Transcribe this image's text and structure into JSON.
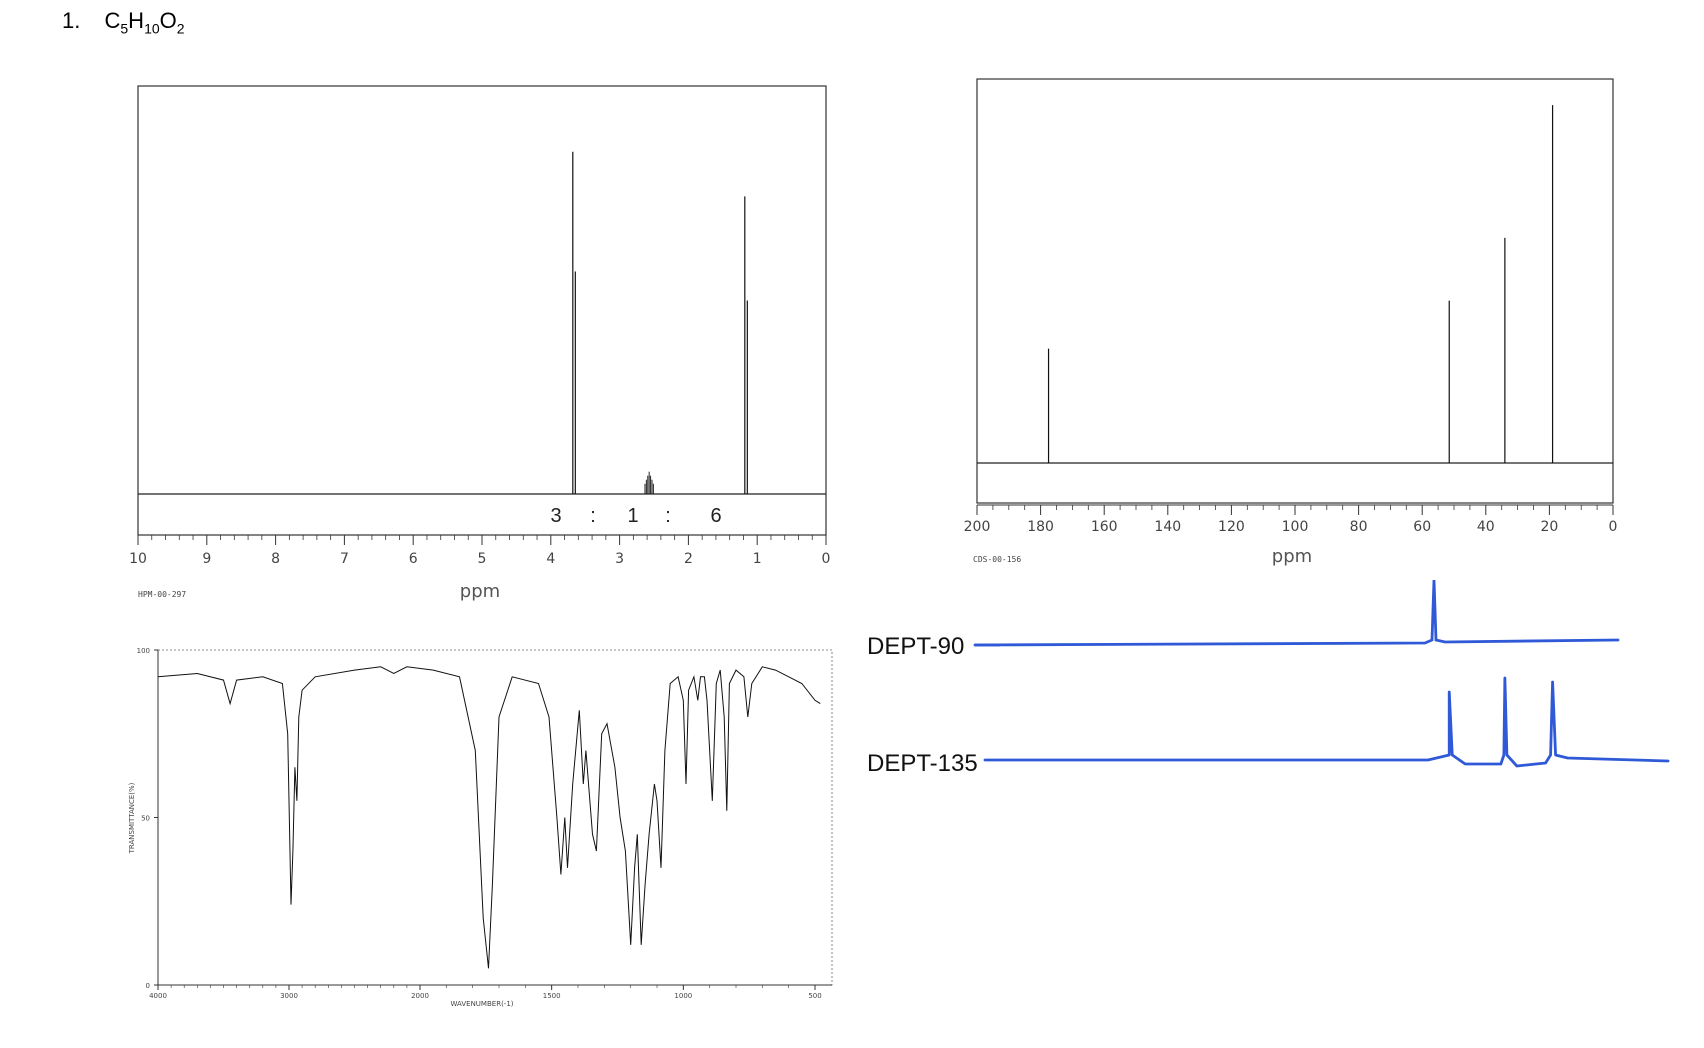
{
  "problem": {
    "number": "1.",
    "formula_C": "C",
    "formula_C_sub": "5",
    "formula_H": "H",
    "formula_H_sub": "10",
    "formula_O": "O",
    "formula_O_sub": "2"
  },
  "chart_data": [
    {
      "id": "h1-nmr",
      "type": "line",
      "xlabel": "ppm",
      "code": "HPM-00-297",
      "xlim": [
        10,
        0
      ],
      "x_ticks": [
        "10",
        "9",
        "8",
        "7",
        "6",
        "5",
        "4",
        "3",
        "2",
        "1",
        "0"
      ],
      "integration_ratio": [
        "3",
        ":",
        "1",
        ":",
        "6"
      ],
      "peaks": [
        {
          "ppm": 3.68,
          "relative_height": 0.92
        },
        {
          "ppm": 2.57,
          "relative_height": 0.06
        },
        {
          "ppm": 1.18,
          "relative_height": 0.8
        }
      ]
    },
    {
      "id": "c13-nmr",
      "type": "line",
      "xlabel": "ppm",
      "code": "CDS-00-156",
      "xlim": [
        200,
        0
      ],
      "x_ticks": [
        "200",
        "180",
        "160",
        "140",
        "120",
        "100",
        "80",
        "60",
        "40",
        "20",
        "0"
      ],
      "peaks": [
        {
          "ppm": 177.5,
          "relative_height": 0.31
        },
        {
          "ppm": 51.5,
          "relative_height": 0.44
        },
        {
          "ppm": 34.0,
          "relative_height": 0.61
        },
        {
          "ppm": 19.0,
          "relative_height": 0.97
        }
      ]
    },
    {
      "id": "ir",
      "type": "line",
      "ylabel": "TRANSMITTANCE(%)",
      "xlabel": "WAVENUMBER(-1)",
      "y_ticks": [
        "100",
        "50",
        "0"
      ],
      "x_ticks": [
        "4000",
        "3000",
        "2000",
        "1500",
        "1000",
        "500"
      ],
      "ylim": [
        0,
        100
      ],
      "points": [
        [
          4000,
          92
        ],
        [
          3700,
          93
        ],
        [
          3500,
          91
        ],
        [
          3450,
          84
        ],
        [
          3400,
          91
        ],
        [
          3200,
          92
        ],
        [
          3050,
          90
        ],
        [
          3010,
          75
        ],
        [
          2985,
          24
        ],
        [
          2970,
          40
        ],
        [
          2955,
          65
        ],
        [
          2940,
          55
        ],
        [
          2925,
          80
        ],
        [
          2900,
          88
        ],
        [
          2800,
          92
        ],
        [
          2500,
          94
        ],
        [
          2300,
          95
        ],
        [
          2200,
          93
        ],
        [
          2100,
          95
        ],
        [
          1950,
          94
        ],
        [
          1850,
          92
        ],
        [
          1790,
          70
        ],
        [
          1760,
          20
        ],
        [
          1740,
          5
        ],
        [
          1725,
          30
        ],
        [
          1700,
          80
        ],
        [
          1650,
          92
        ],
        [
          1550,
          90
        ],
        [
          1510,
          80
        ],
        [
          1480,
          50
        ],
        [
          1465,
          33
        ],
        [
          1450,
          50
        ],
        [
          1440,
          35
        ],
        [
          1420,
          60
        ],
        [
          1395,
          82
        ],
        [
          1380,
          60
        ],
        [
          1370,
          70
        ],
        [
          1345,
          45
        ],
        [
          1330,
          40
        ],
        [
          1310,
          75
        ],
        [
          1290,
          78
        ],
        [
          1260,
          65
        ],
        [
          1240,
          50
        ],
        [
          1220,
          40
        ],
        [
          1200,
          12
        ],
        [
          1185,
          35
        ],
        [
          1175,
          45
        ],
        [
          1160,
          12
        ],
        [
          1145,
          30
        ],
        [
          1130,
          45
        ],
        [
          1110,
          60
        ],
        [
          1100,
          55
        ],
        [
          1085,
          35
        ],
        [
          1070,
          70
        ],
        [
          1050,
          90
        ],
        [
          1020,
          92
        ],
        [
          1000,
          85
        ],
        [
          990,
          60
        ],
        [
          980,
          88
        ],
        [
          960,
          92
        ],
        [
          945,
          85
        ],
        [
          935,
          92
        ],
        [
          920,
          92
        ],
        [
          910,
          85
        ],
        [
          890,
          55
        ],
        [
          875,
          90
        ],
        [
          860,
          94
        ],
        [
          845,
          80
        ],
        [
          835,
          52
        ],
        [
          825,
          90
        ],
        [
          800,
          94
        ],
        [
          770,
          92
        ],
        [
          755,
          80
        ],
        [
          740,
          90
        ],
        [
          700,
          95
        ],
        [
          650,
          94
        ],
        [
          600,
          92
        ],
        [
          550,
          90
        ],
        [
          500,
          85
        ],
        [
          480,
          84
        ]
      ]
    },
    {
      "id": "dept",
      "type": "line",
      "series": [
        {
          "name": "DEPT-90",
          "peaks_ppm": [
            51.5
          ]
        },
        {
          "name": "DEPT-135",
          "peaks_ppm": [
            51.5,
            34.0,
            19.0
          ]
        }
      ],
      "color": "#2f59d6"
    }
  ]
}
